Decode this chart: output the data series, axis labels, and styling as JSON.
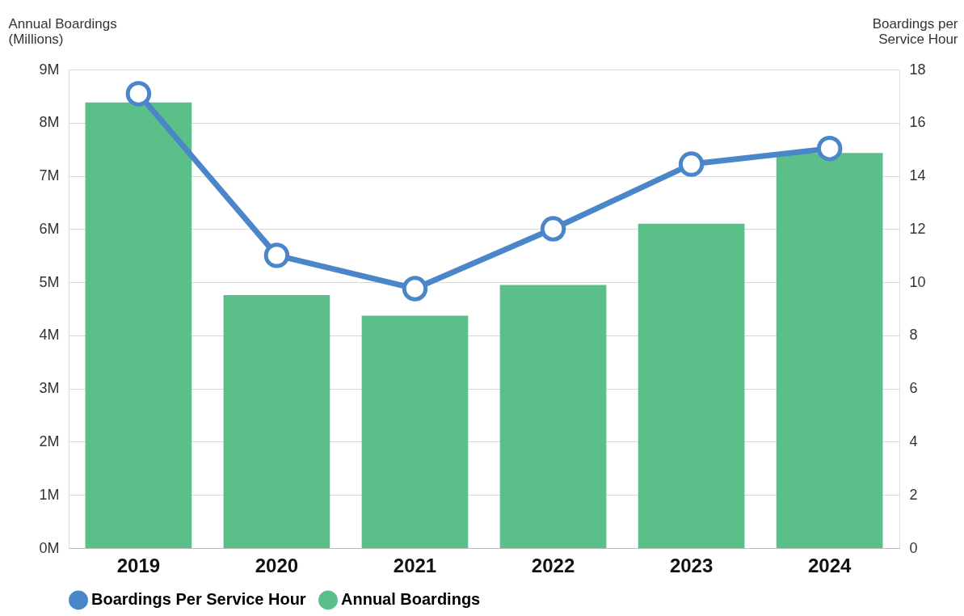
{
  "chart_data": {
    "type": "bar",
    "categories": [
      "2019",
      "2020",
      "2021",
      "2022",
      "2023",
      "2024"
    ],
    "ylabel": "Annual Boardings\n(Millions)",
    "y2label": "Boardings per\nService Hour",
    "ylim": [
      0,
      9
    ],
    "yticks": [
      {
        "value": 0,
        "label": "0M"
      },
      {
        "value": 1,
        "label": "1M"
      },
      {
        "value": 2,
        "label": "2M"
      },
      {
        "value": 3,
        "label": "3M"
      },
      {
        "value": 4,
        "label": "4M"
      },
      {
        "value": 5,
        "label": "5M"
      },
      {
        "value": 6,
        "label": "6M"
      },
      {
        "value": 7,
        "label": "7M"
      },
      {
        "value": 8,
        "label": "8M"
      },
      {
        "value": 9,
        "label": "9M"
      }
    ],
    "y2lim": [
      0,
      18
    ],
    "y2ticks": [
      0,
      2,
      4,
      6,
      8,
      10,
      12,
      14,
      16,
      18
    ],
    "series": [
      {
        "name": "Boardings Per Service Hour",
        "type": "line",
        "axis": "y2",
        "color": "#4a86c8",
        "values": [
          17.09,
          11.01,
          9.76,
          12.01,
          14.44,
          15.03
        ]
      },
      {
        "name": "Annual Boardings",
        "color": "#5bbf8a",
        "values": [
          8.38,
          4.76,
          4.37,
          4.95,
          6.1,
          7.43
        ]
      }
    ],
    "grid": "y",
    "legend": "bottom",
    "marker": "circle",
    "line_style": "solid"
  }
}
